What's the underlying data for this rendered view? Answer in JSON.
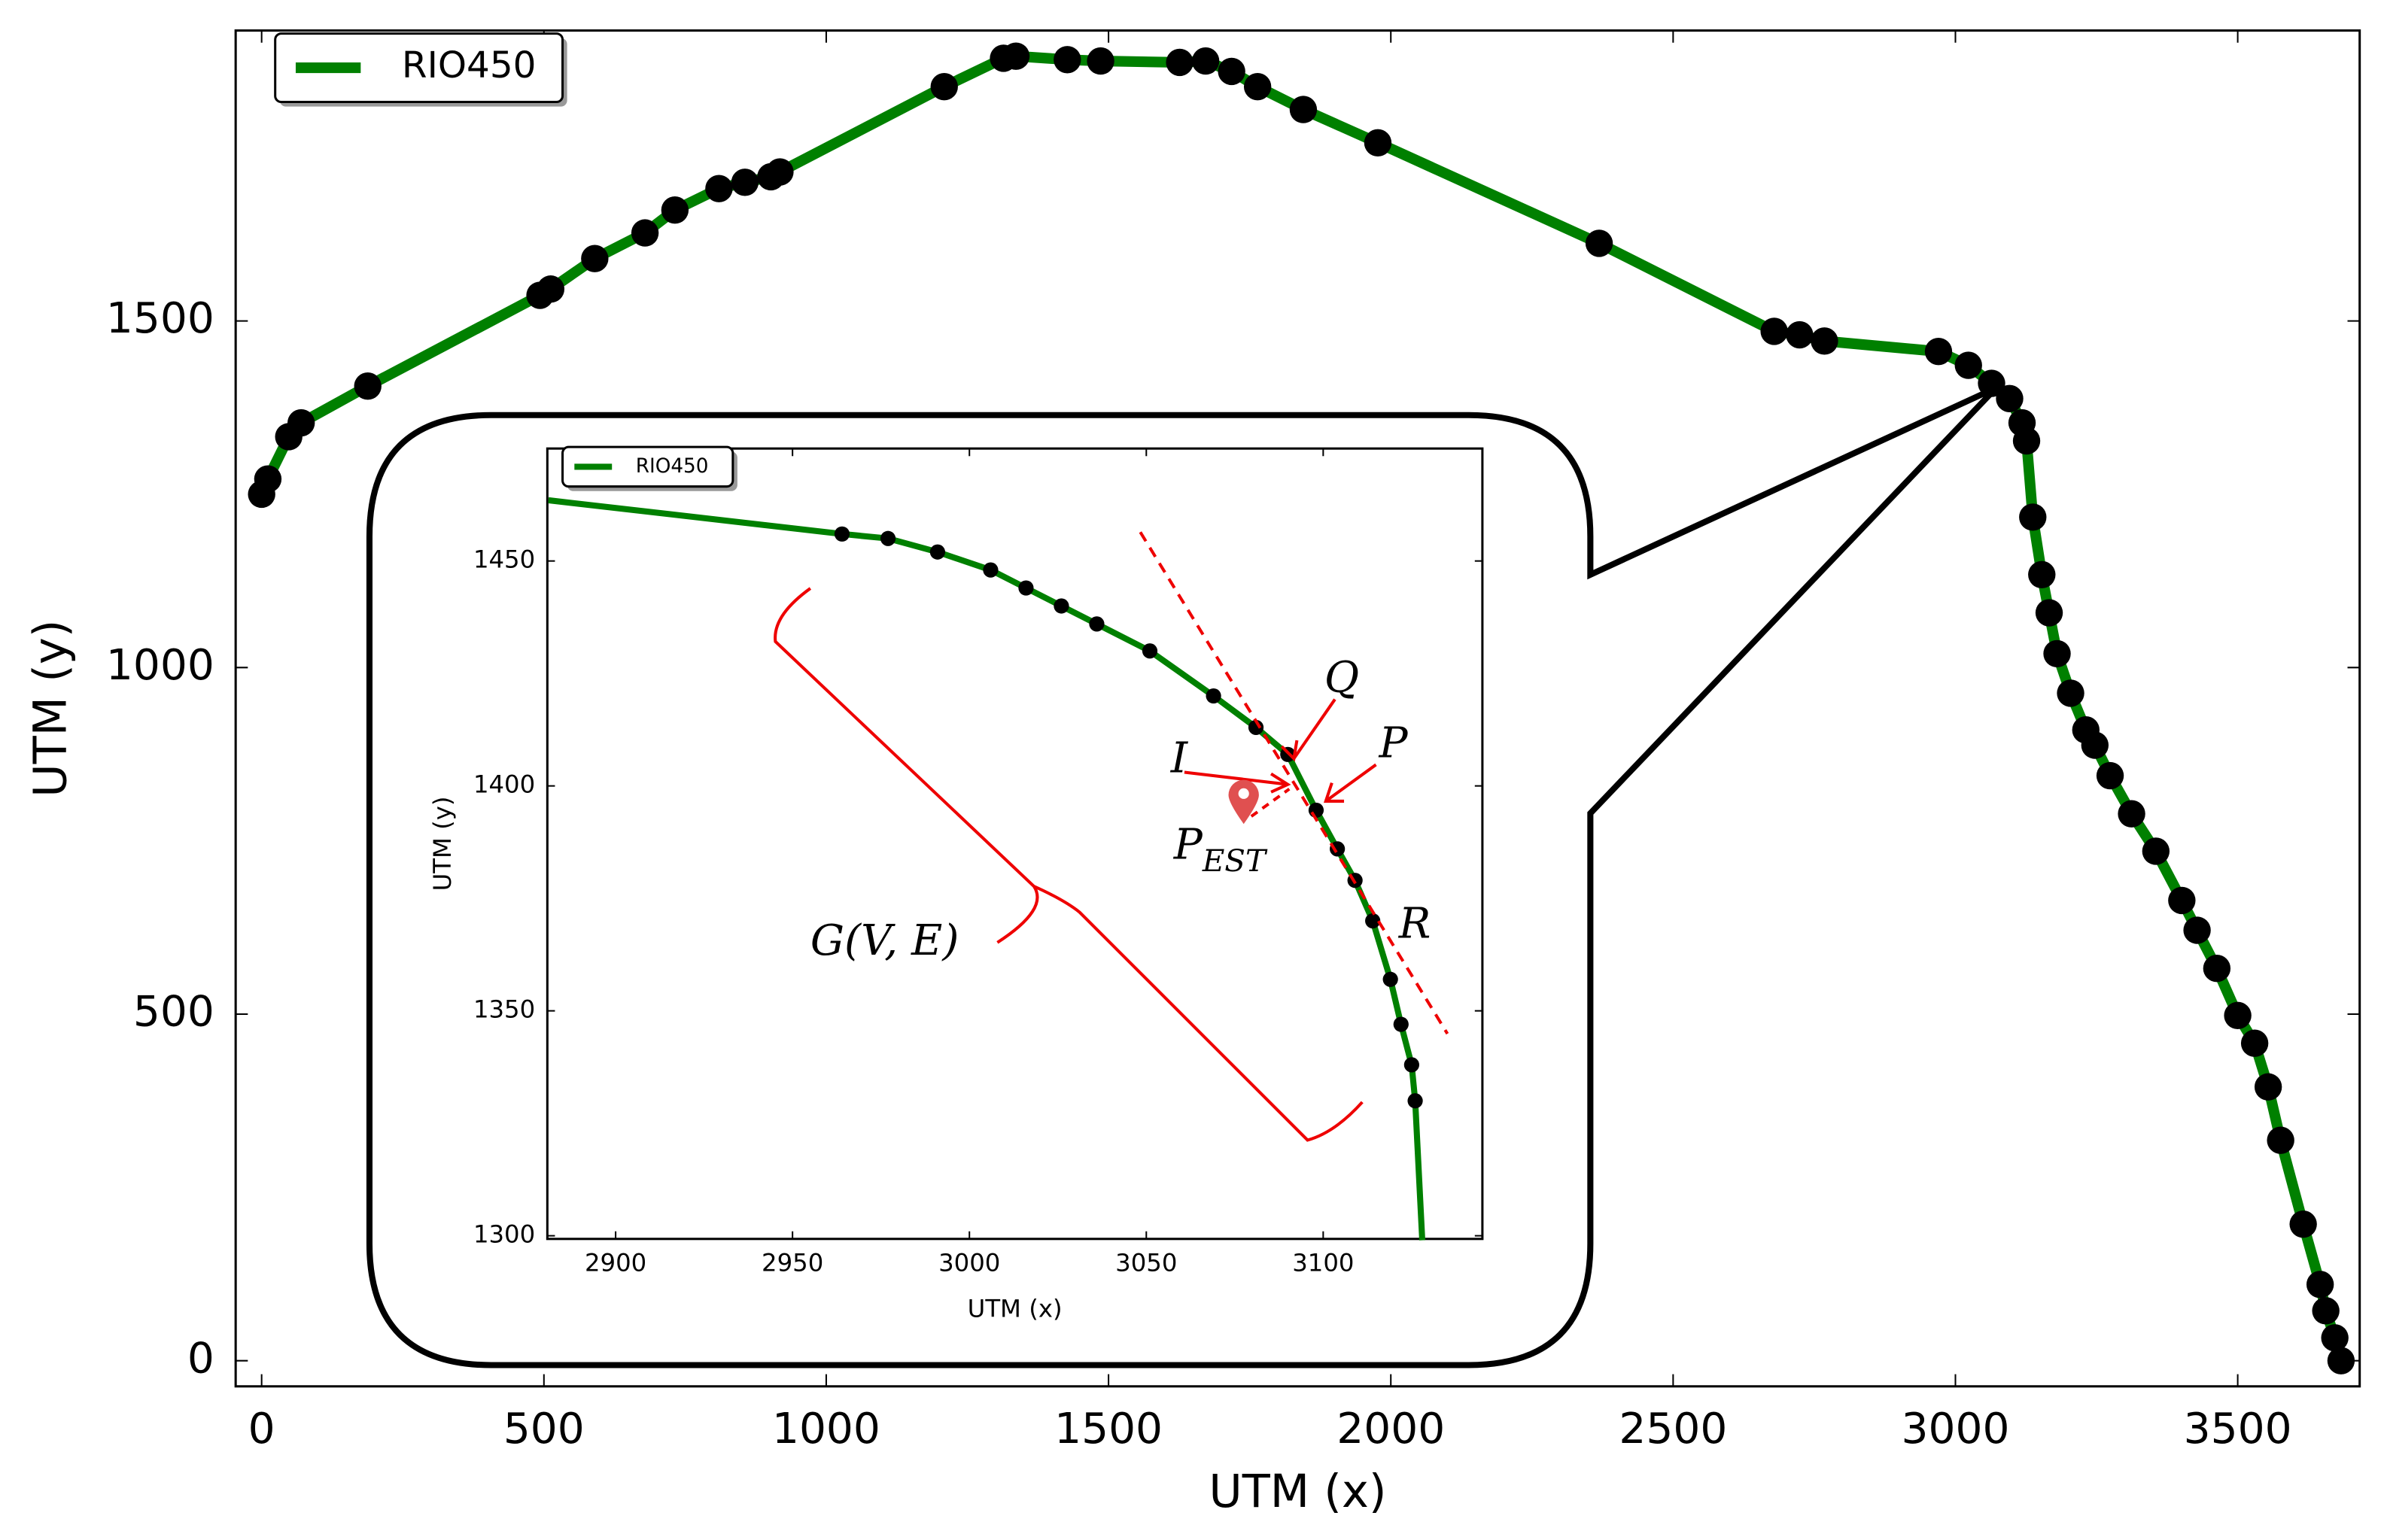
{
  "chart_data": [
    {
      "type": "line",
      "x_label": "UTM (x)",
      "y_label": "UTM (y)",
      "x": [
        0,
        11,
        48,
        70,
        188,
        493,
        512,
        590,
        679,
        732,
        810,
        856,
        902,
        918,
        1209,
        1314,
        1336,
        1427,
        1486,
        1626,
        1672,
        1718,
        1764,
        1845,
        1977,
        2369,
        2679,
        2724,
        2768,
        2970,
        3023,
        3064,
        3096,
        3118,
        3126,
        3137,
        3153,
        3166,
        3180,
        3204,
        3231,
        3247,
        3274,
        3312,
        3355,
        3401,
        3428,
        3463,
        3500,
        3530,
        3554,
        3576,
        3616,
        3646,
        3656,
        3672,
        3683
      ],
      "series": [
        {
          "name": "RIO450",
          "color": "#008000",
          "marker_color": "#000000",
          "values": [
            1250,
            1272,
            1333,
            1353,
            1406,
            1537,
            1546,
            1590,
            1627,
            1660,
            1691,
            1700,
            1708,
            1715,
            1838,
            1879,
            1882,
            1877,
            1875,
            1873,
            1875,
            1860,
            1838,
            1805,
            1757,
            1612,
            1485,
            1480,
            1471,
            1456,
            1436,
            1410,
            1388,
            1353,
            1327,
            1217,
            1134,
            1079,
            1020,
            963,
            910,
            888,
            844,
            789,
            735,
            664,
            621,
            566,
            498,
            458,
            395,
            318,
            197,
            110,
            72,
            33,
            0
          ]
        }
      ],
      "xlim": [
        -46,
        3716
      ],
      "ylim": [
        -37,
        1919
      ],
      "xticks": [
        0,
        500,
        1000,
        1500,
        2000,
        2500,
        3000,
        3500
      ],
      "yticks": [
        0,
        500,
        1000,
        1500
      ],
      "grid": false,
      "legend": "upper left"
    },
    {
      "type": "line",
      "x_label": "UTM (x)",
      "y_label": "UTM (y)",
      "x": [
        2881,
        2964,
        2977,
        2991,
        3006,
        3016,
        3026,
        3036,
        3051,
        3069,
        3081,
        3090,
        3098,
        3104,
        3109,
        3114,
        3119,
        3122,
        3125,
        3126,
        3128
      ],
      "markers": [
        false,
        true,
        true,
        true,
        true,
        true,
        true,
        true,
        true,
        true,
        true,
        true,
        true,
        true,
        true,
        true,
        true,
        true,
        true,
        true,
        false
      ],
      "series": [
        {
          "name": "RIO450",
          "color": "#008000",
          "marker_color": "#000000",
          "values": [
            1463.5,
            1456,
            1455,
            1452,
            1448,
            1444,
            1440,
            1436,
            1430,
            1420,
            1413,
            1407,
            1394.6,
            1386,
            1379,
            1370,
            1357,
            1347,
            1338,
            1330,
            1299
          ]
        }
      ],
      "xlim": [
        2880.7,
        3145
      ],
      "ylim": [
        1299.3,
        1475
      ],
      "xticks": [
        2900,
        2950,
        3000,
        3050,
        3100
      ],
      "yticks": [
        1300,
        1350,
        1400,
        1450
      ],
      "grid": false,
      "legend": "upper left",
      "annotations": [
        {
          "text": "Q"
        },
        {
          "text": "P"
        },
        {
          "text": "I"
        },
        {
          "text": "P",
          "sub": "EST"
        },
        {
          "text": "R"
        },
        {
          "text": "G(V, E)"
        }
      ]
    }
  ]
}
